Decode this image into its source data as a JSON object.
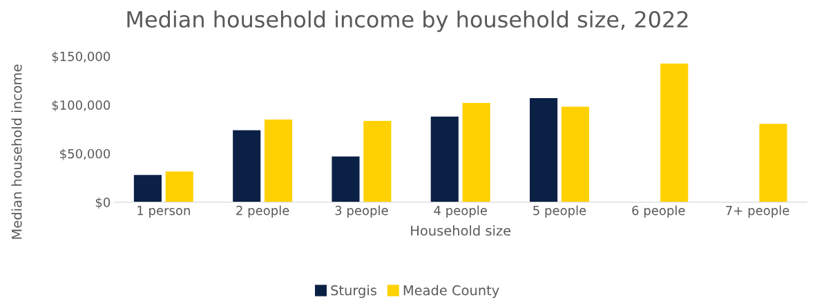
{
  "chart_data": {
    "type": "bar",
    "title": "Median household income by household size, 2022",
    "xlabel": "Household size",
    "ylabel": "Median household income",
    "categories": [
      "1 person",
      "2 people",
      "3 people",
      "4 people",
      "5 people",
      "6 people",
      "7+ people"
    ],
    "series": [
      {
        "name": "Sturgis",
        "color": "#0b2045",
        "values": [
          28000,
          74000,
          47000,
          88000,
          107000,
          null,
          null
        ]
      },
      {
        "name": "Meade County",
        "color": "#ffd100",
        "values": [
          31500,
          85000,
          83500,
          102000,
          98000,
          142500,
          80500
        ]
      }
    ],
    "ylim": [
      0,
      150000
    ],
    "yticks": [
      {
        "value": 0,
        "label": "$0"
      },
      {
        "value": 50000,
        "label": "$50,000"
      },
      {
        "value": 100000,
        "label": "$100,000"
      },
      {
        "value": 150000,
        "label": "$150,000"
      }
    ],
    "grid": false,
    "legend": "bottom"
  }
}
